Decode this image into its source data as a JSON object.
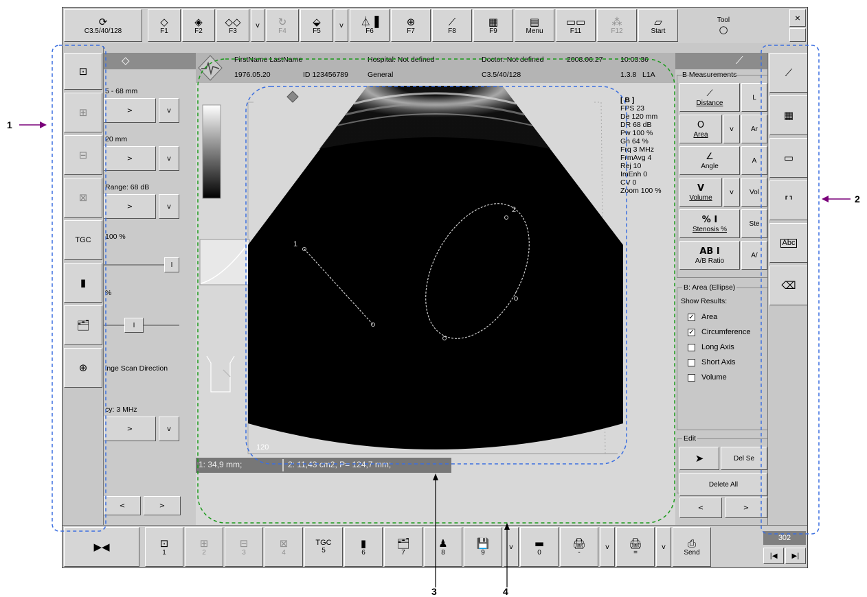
{
  "top_toolbar": {
    "probe_label": "C3.5/40/128",
    "buttons": [
      {
        "id": "f1",
        "label": "F1",
        "icon": "scan-icon"
      },
      {
        "id": "f2",
        "label": "F2",
        "icon": "scan-split-icon"
      },
      {
        "id": "f3",
        "label": "F3",
        "icon": "dual-scan-icon"
      },
      {
        "id": "f4",
        "label": "F4",
        "icon": "rotate-icon"
      },
      {
        "id": "f5",
        "label": "F5",
        "icon": "scan-layers-icon"
      },
      {
        "id": "f6",
        "label": "F6",
        "icon": "doppler-icon"
      },
      {
        "id": "f7",
        "label": "F7",
        "icon": "zoom-icon"
      },
      {
        "id": "f8",
        "label": "F8",
        "icon": "measure-icon"
      },
      {
        "id": "f9",
        "label": "F9",
        "icon": "calculator-icon"
      },
      {
        "id": "menu",
        "label": "Menu",
        "icon": "menu-icon"
      },
      {
        "id": "f11",
        "label": "F11",
        "icon": "frames-icon"
      },
      {
        "id": "f12",
        "label": "F12",
        "icon": "wand-icon"
      },
      {
        "id": "start",
        "label": "Start",
        "icon": "start-icon"
      }
    ],
    "tool_label": "Tool",
    "close_label": "×"
  },
  "left_panel": {
    "depth_label": "5 - 68 mm",
    "focus_label": "20 mm",
    "range_label": "Range: 68 dB",
    "power_label": "100 %",
    "gain_label": "%",
    "scan_direction_label": "inge Scan Direction",
    "frequency_label": "cy: 3 MHz",
    "arrow_right": ">",
    "arrow_down": "v",
    "arrow_left": "<",
    "slider_glyph": "I"
  },
  "left_icons": [
    {
      "name": "mode-b-icon",
      "glyph": "⊡"
    },
    {
      "name": "mode-bm-icon",
      "glyph": "⊞"
    },
    {
      "name": "mode-bb-icon",
      "glyph": "⊟"
    },
    {
      "name": "mode-4b-icon",
      "glyph": "⊠"
    },
    {
      "name": "tgc-icon",
      "glyph": "TGC"
    },
    {
      "name": "grayscale-icon",
      "glyph": "▮"
    },
    {
      "name": "archive-icon",
      "glyph": "🗂"
    },
    {
      "name": "zoom-icon",
      "glyph": "⊕"
    }
  ],
  "patient_header": {
    "name": "FirstName LastName",
    "hospital": "Hospital: Not defined",
    "doctor": "Doctor: Not defined",
    "date": "2008.06.27",
    "time": "10:03:36",
    "dob": "1976.05.20",
    "id": "ID 123456789",
    "exam": "General",
    "probe": "C3.5/40/128",
    "version": "1.3.8",
    "mode_code": "L1A"
  },
  "image_status": {
    "mode": "[ B ]",
    "fps": "FPS  23",
    "depth": "De 120 mm",
    "dr": "DR  68 dB",
    "power": "Pw 100 %",
    "gain": "Gn 64 %",
    "freq": "Frq  3 MHz",
    "frm_avg": "FrmAvg  4",
    "rej": "Rej 10",
    "imenh": "ImEnh  0",
    "cv": "CV  0",
    "zoom": "Zoom  100 %"
  },
  "image_labels": {
    "depth_tick": "120",
    "marker1": "1",
    "marker2": "2"
  },
  "result_bar": {
    "left": "1:   34,9 mm;",
    "right": "2:   11,43 cm2, P= 124,7 mm;"
  },
  "measurements": {
    "section_title": "B Measurements",
    "buttons": [
      {
        "id": "distance",
        "label": "Distance",
        "icon": "distance-icon",
        "glyph": "⟋"
      },
      {
        "id": "area",
        "label": "Area",
        "icon": "area-icon",
        "glyph": "O"
      },
      {
        "id": "angle",
        "label": "Angle",
        "icon": "angle-icon",
        "glyph": "∠"
      },
      {
        "id": "volume",
        "label": "Volume",
        "icon": "volume-icon",
        "glyph": "V"
      },
      {
        "id": "stenosis",
        "label": "Stenosis %",
        "icon": "stenosis-icon",
        "glyph": "% I"
      },
      {
        "id": "ratio",
        "label": "A/B Ratio",
        "icon": "ratio-icon",
        "glyph": "AB I"
      }
    ],
    "partial": [
      "L",
      "Ar",
      "A",
      "Vol",
      "Ste",
      "A/"
    ],
    "result_section_title": "B: Area (Ellipse)",
    "show_results_label": "Show Results:",
    "checkboxes": [
      {
        "label": "Area",
        "checked": true
      },
      {
        "label": "Circumference",
        "checked": true
      },
      {
        "label": "Long Axis",
        "checked": false
      },
      {
        "label": "Short Axis",
        "checked": false
      },
      {
        "label": "Volume",
        "checked": false
      }
    ],
    "edit_title": "Edit",
    "delete_sel_label": "Del Se",
    "delete_all_label": "Delete All"
  },
  "right_icons": [
    {
      "name": "distance-tool-icon",
      "glyph": "⟋"
    },
    {
      "name": "calculator-icon",
      "glyph": "▦"
    },
    {
      "name": "frames-icon",
      "glyph": "▭"
    },
    {
      "name": "body-icon",
      "glyph": "⸢⸣"
    },
    {
      "name": "annotation-icon",
      "glyph": "Abc"
    },
    {
      "name": "eraser-icon",
      "glyph": "⌫"
    }
  ],
  "bottom_toolbar": {
    "freeze_glyph": "▶◀",
    "buttons": [
      {
        "label": "1",
        "glyph": "⊡",
        "disabled": false
      },
      {
        "label": "2",
        "glyph": "⊞",
        "disabled": true
      },
      {
        "label": "3",
        "glyph": "⊟",
        "disabled": true
      },
      {
        "label": "4",
        "glyph": "⊠",
        "disabled": true
      },
      {
        "label": "5",
        "glyph": "TGC",
        "disabled": false
      },
      {
        "label": "6",
        "glyph": "▮",
        "disabled": false
      },
      {
        "label": "7",
        "glyph": "🗂",
        "disabled": false
      },
      {
        "label": "8",
        "glyph": "♟",
        "disabled": false
      },
      {
        "label": "9",
        "glyph": "💾",
        "disabled": false
      },
      {
        "label": "0",
        "glyph": "▬",
        "disabled": false
      },
      {
        "label": "-",
        "glyph": "🖨",
        "disabled": false
      },
      {
        "label": "=",
        "glyph": "🖨",
        "disabled": false
      },
      {
        "label": "Send",
        "glyph": "⎙",
        "disabled": false
      }
    ],
    "frame_counter": "302",
    "prev_glyph": "|◀",
    "next_glyph": "▶|"
  },
  "callouts": [
    "1",
    "2",
    "3",
    "4"
  ],
  "colors": {
    "callout_arrow": "#7a007a",
    "panel_blue_outline": "#3b6fe0",
    "panel_green_outline": "#1a9a1a"
  }
}
